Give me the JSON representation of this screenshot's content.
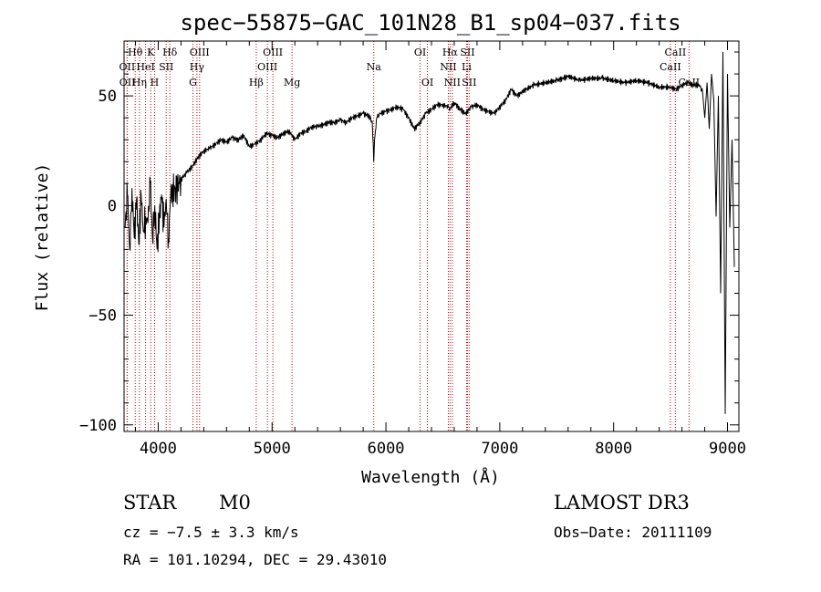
{
  "chart_data": {
    "type": "line",
    "title": "spec−55875−GAC_101N28_B1_sp04−037.fits",
    "xlabel": "Wavelength (Å)",
    "ylabel": "Flux (relative)",
    "xlim": [
      3700,
      9100
    ],
    "ylim": [
      -103,
      75
    ],
    "xticks": [
      4000,
      5000,
      6000,
      7000,
      8000,
      9000
    ],
    "yticks": [
      -100,
      -50,
      0,
      50
    ],
    "ytick_labels": [
      "−100",
      "−50",
      "0",
      "50"
    ],
    "grid": false,
    "series": [
      {
        "name": "spectrum",
        "x": [
          3710,
          3730,
          3750,
          3770,
          3790,
          3810,
          3830,
          3850,
          3870,
          3890,
          3910,
          3930,
          3950,
          3970,
          3990,
          4010,
          4030,
          4050,
          4070,
          4090,
          4110,
          4150,
          4200,
          4250,
          4300,
          4350,
          4400,
          4450,
          4500,
          4550,
          4600,
          4650,
          4700,
          4750,
          4800,
          4850,
          4900,
          4950,
          5000,
          5050,
          5100,
          5150,
          5200,
          5250,
          5300,
          5350,
          5400,
          5450,
          5500,
          5550,
          5600,
          5650,
          5700,
          5750,
          5800,
          5850,
          5880,
          5893,
          5900,
          5920,
          5950,
          6000,
          6050,
          6100,
          6150,
          6200,
          6250,
          6300,
          6350,
          6400,
          6450,
          6500,
          6550,
          6563,
          6600,
          6650,
          6700,
          6750,
          6800,
          6850,
          6900,
          6950,
          7000,
          7050,
          7100,
          7150,
          7200,
          7300,
          7400,
          7500,
          7550,
          7600,
          7700,
          7800,
          7900,
          8000,
          8100,
          8200,
          8300,
          8400,
          8500,
          8550,
          8600,
          8650,
          8700,
          8750,
          8780,
          8800,
          8820,
          8840,
          8860,
          8880,
          8900,
          8920,
          8940,
          8960,
          8980,
          9000,
          9020,
          9040,
          9060
        ],
        "y": [
          -10,
          5,
          -20,
          8,
          -15,
          3,
          -18,
          5,
          -12,
          -5,
          -8,
          10,
          -15,
          0,
          -20,
          -5,
          5,
          -10,
          3,
          -15,
          5,
          8,
          12,
          15,
          18,
          22,
          25,
          26,
          28,
          30,
          29,
          31,
          30,
          32,
          27,
          28,
          30,
          33,
          32,
          31,
          33,
          34,
          30,
          33,
          34,
          36,
          36,
          37,
          38,
          38,
          39,
          38,
          40,
          41,
          42,
          41,
          38,
          20,
          30,
          40,
          42,
          43,
          44,
          45,
          44,
          40,
          35,
          38,
          42,
          44,
          46,
          46,
          45,
          44,
          47,
          44,
          42,
          45,
          46,
          44,
          43,
          42,
          45,
          48,
          53,
          50,
          52,
          55,
          56,
          57,
          58,
          59,
          57,
          58,
          58,
          57,
          56,
          57,
          56,
          54,
          54,
          53,
          55,
          56,
          55,
          55,
          52,
          40,
          56,
          35,
          60,
          48,
          -5,
          50,
          -40,
          70,
          -95,
          60,
          -10,
          30,
          -28
        ]
      }
    ],
    "lines": [
      {
        "label": "Hθ",
        "wavelength": 3798,
        "row": 0
      },
      {
        "label": "OII",
        "wavelength": 3727,
        "row": 1
      },
      {
        "label": "OII",
        "wavelength": 3729,
        "row": 2
      },
      {
        "label": "Hη",
        "wavelength": 3835,
        "row": 2
      },
      {
        "label": "K",
        "wavelength": 3934,
        "row": 0
      },
      {
        "label": "HeI",
        "wavelength": 3889,
        "row": 1
      },
      {
        "label": "H",
        "wavelength": 3968,
        "row": 2
      },
      {
        "label": "Hδ",
        "wavelength": 4102,
        "row": 0
      },
      {
        "label": "SII",
        "wavelength": 4070,
        "row": 1
      },
      {
        "label": "OIII",
        "wavelength": 4363,
        "row": 0
      },
      {
        "label": "Hγ",
        "wavelength": 4340,
        "row": 1
      },
      {
        "label": "G",
        "wavelength": 4305,
        "row": 2
      },
      {
        "label": "OIII",
        "wavelength": 5007,
        "row": 0
      },
      {
        "label": "OIII",
        "wavelength": 4959,
        "row": 1
      },
      {
        "label": "Hβ",
        "wavelength": 4861,
        "row": 2
      },
      {
        "label": "Mg",
        "wavelength": 5175,
        "row": 2
      },
      {
        "label": "Na",
        "wavelength": 5893,
        "row": 1
      },
      {
        "label": "OI",
        "wavelength": 6300,
        "row": 0
      },
      {
        "label": "OI",
        "wavelength": 6364,
        "row": 2
      },
      {
        "label": "Hα",
        "wavelength": 6563,
        "row": 0
      },
      {
        "label": "SII",
        "wavelength": 6716,
        "row": 0
      },
      {
        "label": "NII",
        "wavelength": 6548,
        "row": 1
      },
      {
        "label": "Li",
        "wavelength": 6708,
        "row": 1
      },
      {
        "label": "NII",
        "wavelength": 6583,
        "row": 2
      },
      {
        "label": "SII",
        "wavelength": 6731,
        "row": 2
      },
      {
        "label": "CaII",
        "wavelength": 8542,
        "row": 0
      },
      {
        "label": "CaII",
        "wavelength": 8498,
        "row": 1
      },
      {
        "label": "CaII",
        "wavelength": 8662,
        "row": 2
      }
    ],
    "line_color": "#cc0000"
  },
  "info": {
    "object_class": "STAR",
    "subclass": "M0",
    "survey": "LAMOST DR3",
    "cz": "cz = −7.5 ± 3.3 km/s",
    "obs_date": "Obs−Date: 20111109",
    "coords": "RA = 101.10294, DEC =  29.43010"
  }
}
